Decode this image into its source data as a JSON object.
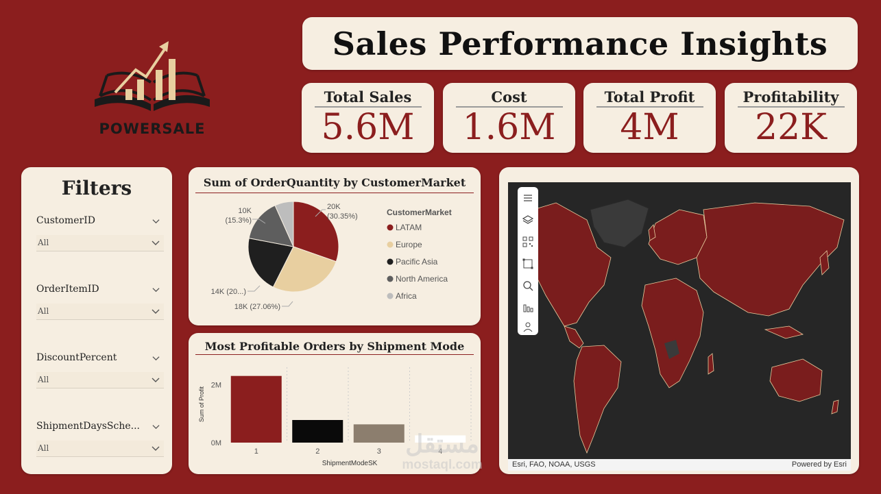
{
  "brand": {
    "name": "POWERSALE"
  },
  "header": {
    "title": "Sales Performance Insights"
  },
  "kpis": [
    {
      "label": "Total Sales",
      "value": "5.6M"
    },
    {
      "label": "Cost",
      "value": "1.6M"
    },
    {
      "label": "Total Profit",
      "value": "4M"
    },
    {
      "label": "Profitability",
      "value": "22K"
    }
  ],
  "filters": {
    "title": "Filters",
    "items": [
      {
        "label": "CustomerID",
        "value": "All"
      },
      {
        "label": "OrderItemID",
        "value": "All"
      },
      {
        "label": "DiscountPercent",
        "value": "All"
      },
      {
        "label": "ShipmentDaysSche...",
        "value": "All"
      }
    ]
  },
  "colors": {
    "background": "#8b1e1e",
    "card": "#f6eee1",
    "accent": "#8b1e1e"
  },
  "chart_data": [
    {
      "type": "pie",
      "title": "Sum of OrderQuantity by CustomerMarket",
      "legend_title": "CustomerMarket",
      "legend_position": "right",
      "slices": [
        {
          "name": "LATAM",
          "label": "20K",
          "pct_label": "(30.35%)",
          "percent": 30.35,
          "color": "#8b1e1e"
        },
        {
          "name": "Europe",
          "label": "18K (27.06%)",
          "percent": 27.06,
          "color": "#e8cfa0"
        },
        {
          "name": "Pacific Asia",
          "label": "14K (20...)",
          "percent": 20.6,
          "color": "#1f1f1f"
        },
        {
          "name": "North America",
          "label": "10K",
          "pct_label": "(15.3%)",
          "percent": 15.3,
          "color": "#5e5e5e"
        },
        {
          "name": "Africa",
          "label": "",
          "percent": 6.69,
          "color": "#bdbdbd"
        }
      ]
    },
    {
      "type": "bar",
      "title": "Most Profitable Orders by Shipment Mode",
      "xlabel": "ShipmentModeSK",
      "ylabel": "Sum of Profit",
      "categories": [
        "1",
        "2",
        "3",
        "4"
      ],
      "values": [
        2.3,
        0.78,
        0.63,
        0.25
      ],
      "value_unit": "M",
      "colors": [
        "#8b1e1e",
        "#0a0a0a",
        "#8c7e6e",
        "#ffffff"
      ],
      "ylim": [
        0,
        2.6
      ],
      "yticks": [
        {
          "value": 0,
          "label": "0M"
        },
        {
          "value": 2,
          "label": "2M"
        }
      ],
      "grid": true
    }
  ],
  "map": {
    "attribution_left": "Esri, FAO, NOAA, USGS",
    "attribution_right": "Powered by Esri",
    "tools": [
      "menu-icon",
      "layers-icon",
      "qr-icon",
      "select-icon",
      "search-icon",
      "bar-chart-icon",
      "person-icon"
    ]
  },
  "watermark": {
    "arabic": "مستقل",
    "latin": "mostaql.com"
  }
}
